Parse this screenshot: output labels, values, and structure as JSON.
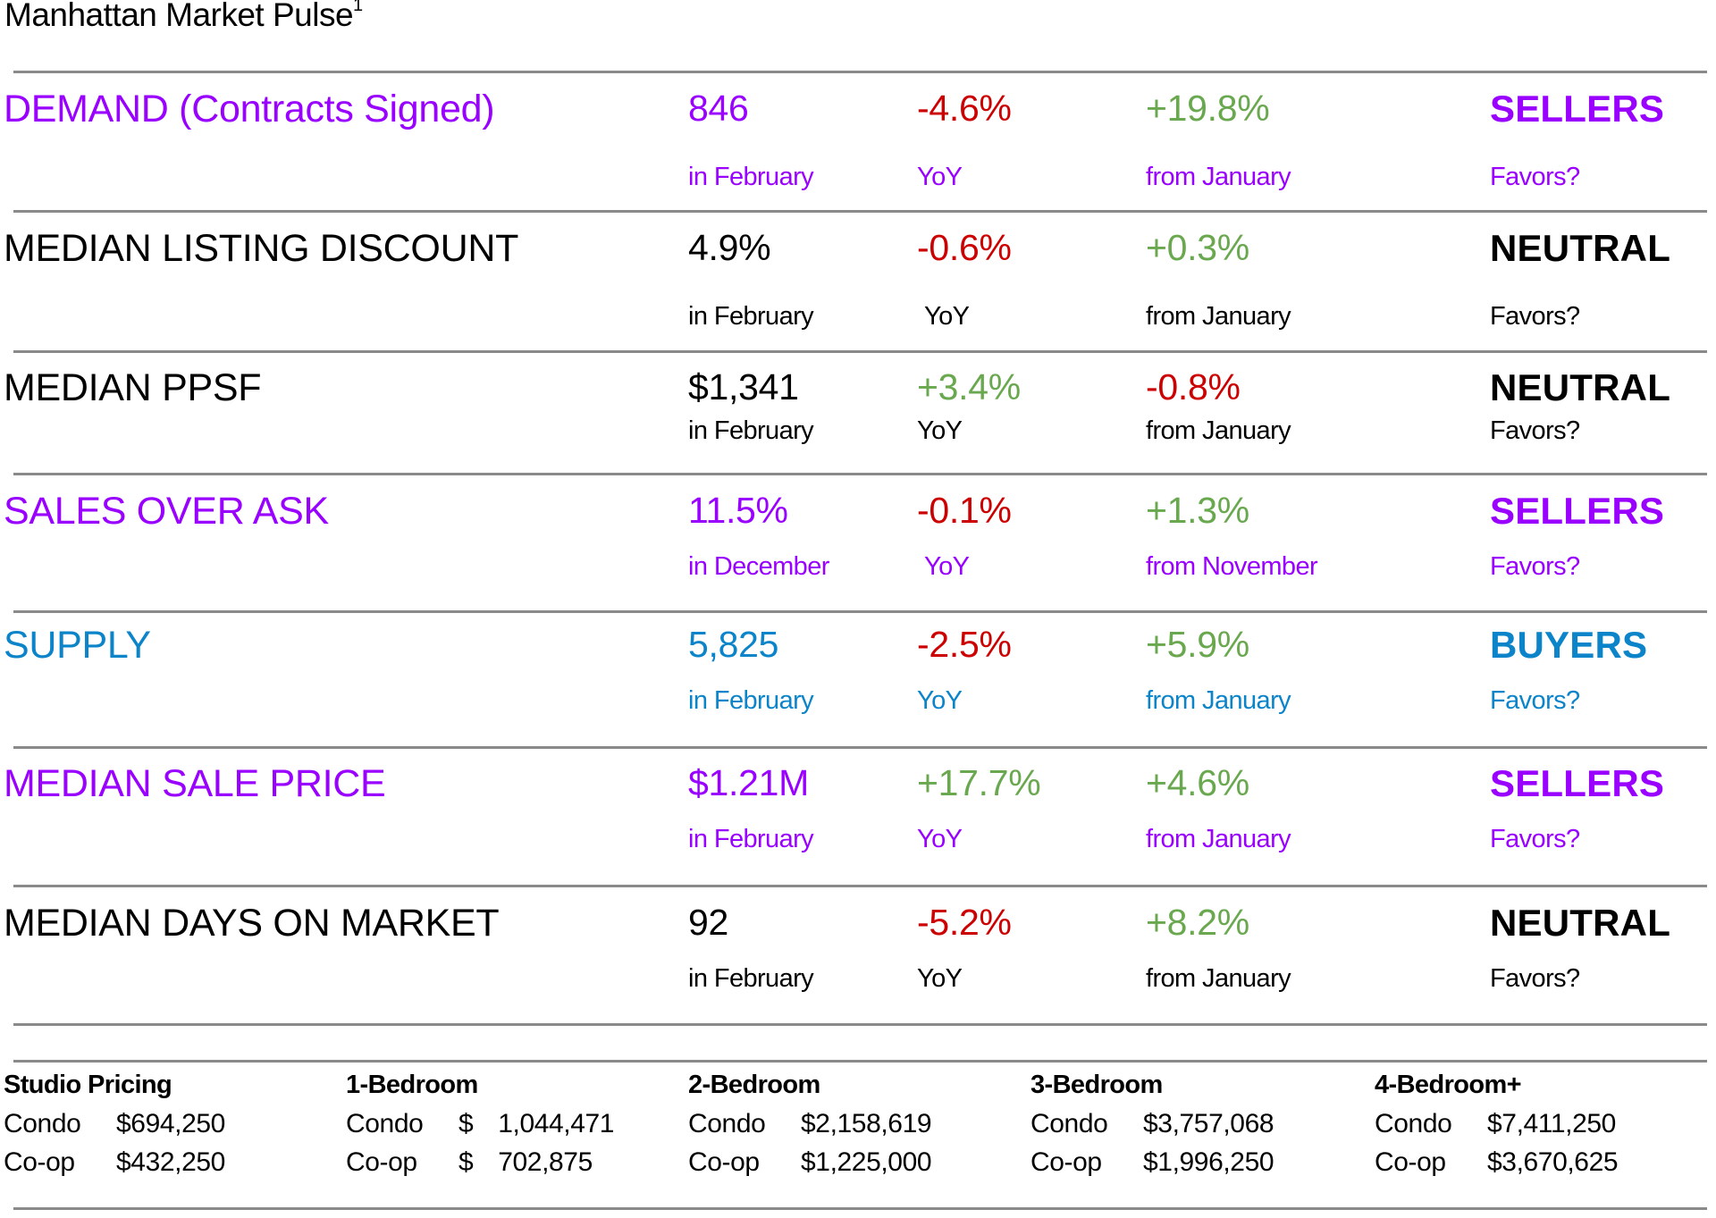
{
  "title": "Manhattan Market Pulse",
  "title_footnote": "1",
  "colors": {
    "purple": "#9900ff",
    "blue": "#0b84c9",
    "black": "#000000",
    "red": "#cc0000",
    "green": "#6aa84f",
    "divider": "#8a8a8a"
  },
  "metrics": [
    {
      "label": "DEMAND (Contracts Signed)",
      "color": "purple",
      "value": "846",
      "period": "in February",
      "yoy": "-4.6%",
      "yoy_color": "red",
      "yoy_label": "YoY",
      "mom": "+19.8%",
      "mom_color": "green",
      "mom_label": "from January",
      "favors": "SELLERS",
      "favors_label": "Favors?"
    },
    {
      "label": "MEDIAN LISTING DISCOUNT",
      "color": "black",
      "value": "4.9%",
      "period": "in February",
      "yoy": "-0.6%",
      "yoy_color": "red",
      "yoy_label": "YoY",
      "mom": "+0.3%",
      "mom_color": "green",
      "mom_label": "from January",
      "favors": "NEUTRAL",
      "favors_label": "Favors?"
    },
    {
      "label": "MEDIAN PPSF",
      "color": "black",
      "value": "$1,341",
      "period": "in February",
      "yoy": "+3.4%",
      "yoy_color": "green",
      "yoy_label": "YoY",
      "mom": "-0.8%",
      "mom_color": "red",
      "mom_label": "from January",
      "favors": "NEUTRAL",
      "favors_label": "Favors?"
    },
    {
      "label": "SALES OVER ASK",
      "color": "purple",
      "value": "11.5%",
      "period": "in December",
      "yoy": "-0.1%",
      "yoy_color": "red",
      "yoy_label": "YoY",
      "mom": "+1.3%",
      "mom_color": "green",
      "mom_label": "from November",
      "favors": "SELLERS",
      "favors_label": "Favors?"
    },
    {
      "label": "SUPPLY",
      "color": "blue",
      "value": "5,825",
      "period": "in February",
      "yoy": "-2.5%",
      "yoy_color": "red",
      "yoy_label": "YoY",
      "mom": "+5.9%",
      "mom_color": "green",
      "mom_label": "from January",
      "favors": "BUYERS",
      "favors_label": "Favors?"
    },
    {
      "label": "MEDIAN SALE PRICE",
      "color": "purple",
      "value": "$1.21M",
      "period": "in February",
      "yoy": "+17.7%",
      "yoy_color": "green",
      "yoy_label": "YoY",
      "mom": "+4.6%",
      "mom_color": "green",
      "mom_label": "from January",
      "favors": "SELLERS",
      "favors_label": "Favors?"
    },
    {
      "label": "MEDIAN DAYS ON MARKET",
      "color": "black",
      "value": "92",
      "period": "in February",
      "yoy": "-5.2%",
      "yoy_color": "red",
      "yoy_label": "YoY",
      "mom": "+8.2%",
      "mom_color": "green",
      "mom_label": "from January",
      "favors": "NEUTRAL",
      "favors_label": "Favors?"
    }
  ],
  "pricing": [
    {
      "heading": "Studio Pricing",
      "condo_label": "Condo",
      "condo": "$694,250",
      "coop_label": "Co-op",
      "coop": "$432,250"
    },
    {
      "heading": "1-Bedroom",
      "condo_label": "Condo",
      "condo": "$ 1,044,471",
      "coop_label": "Co-op",
      "coop": "$ 702,875"
    },
    {
      "heading": "2-Bedroom",
      "condo_label": "Condo",
      "condo": "$2,158,619",
      "coop_label": "Co-op",
      "coop": "$1,225,000"
    },
    {
      "heading": "3-Bedroom",
      "condo_label": "Condo",
      "condo": "$3,757,068",
      "coop_label": "Co-op",
      "coop": "$1,996,250"
    },
    {
      "heading": "4-Bedroom+",
      "condo_label": "Condo",
      "condo": "$7,411,250",
      "coop_label": "Co-op",
      "coop": "$3,670,625"
    }
  ]
}
